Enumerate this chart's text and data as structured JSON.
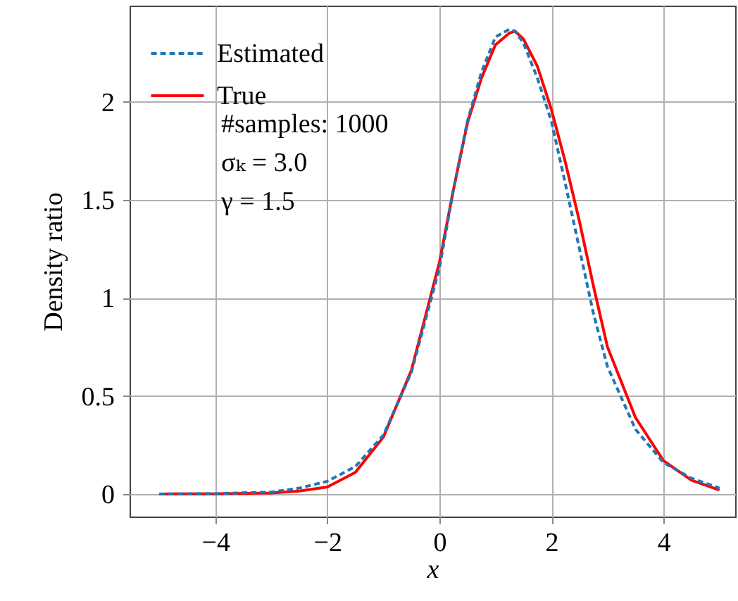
{
  "chart_data": {
    "type": "line",
    "xlabel": "x",
    "ylabel": "Density ratio",
    "xlim": [
      -5.53,
      5.28
    ],
    "ylim": [
      -0.115,
      2.49
    ],
    "xticks": [
      {
        "value": -4,
        "label": "−4"
      },
      {
        "value": -2,
        "label": "−2"
      },
      0,
      2,
      4
    ],
    "yticks": [
      0,
      0.5,
      1,
      1.5,
      2
    ],
    "grid": true,
    "legend": "top left",
    "marker": "none",
    "x": [
      -5,
      -4,
      -3,
      -2.5,
      -2,
      -1.5,
      -1,
      -0.5,
      0,
      0.25,
      0.5,
      0.75,
      1,
      1.25,
      1.35,
      1.5,
      1.75,
      2,
      2.25,
      2.5,
      2.75,
      3,
      3.5,
      4,
      4.5,
      5
    ],
    "series": [
      {
        "name": "Estimated",
        "color": "#1f77b4",
        "line_style": "dashed",
        "values": [
          0,
          0.002,
          0.01,
          0.03,
          0.065,
          0.14,
          0.3,
          0.62,
          1.15,
          1.55,
          1.9,
          2.15,
          2.33,
          2.37,
          2.36,
          2.3,
          2.12,
          1.9,
          1.58,
          1.25,
          0.92,
          0.65,
          0.33,
          0.16,
          0.08,
          0.03
        ]
      },
      {
        "name": "True",
        "color": "#ff0000",
        "line_style": "solid",
        "values": [
          0,
          0.001,
          0.005,
          0.015,
          0.036,
          0.11,
          0.29,
          0.63,
          1.18,
          1.55,
          1.89,
          2.12,
          2.29,
          2.35,
          2.36,
          2.32,
          2.18,
          1.96,
          1.69,
          1.39,
          1.06,
          0.75,
          0.39,
          0.17,
          0.07,
          0.02
        ]
      }
    ],
    "annotations": [
      "#samples: 1000",
      "σₖ = 3.0",
      "γ = 1.5"
    ]
  }
}
